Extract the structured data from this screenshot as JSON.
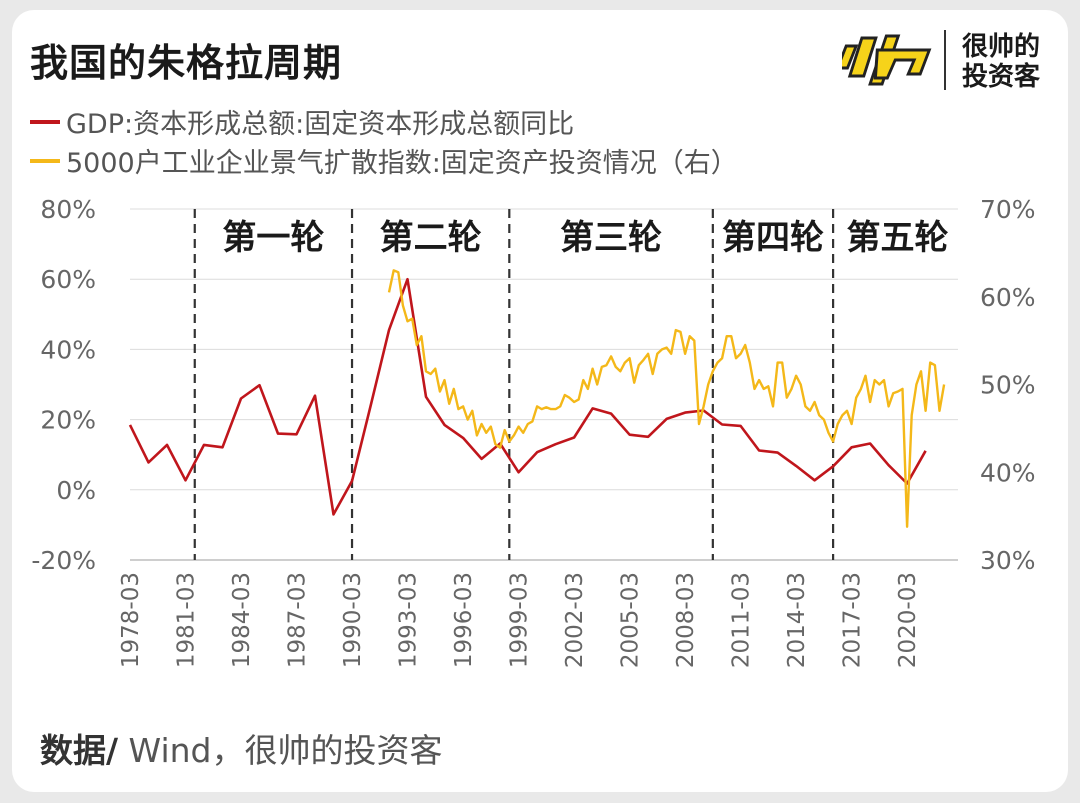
{
  "header": {
    "title": "我国的朱格拉周期"
  },
  "brand": {
    "line1": "很帅的",
    "line2": "投资客",
    "logo_color": "#f6d31a"
  },
  "source": {
    "prefix": "数据/",
    "text": " Wind，很帅的投资客"
  },
  "chart_data": {
    "type": "line",
    "title": "我国的朱格拉周期",
    "x_axis": {
      "ticks": [
        "1978-03",
        "1981-03",
        "1984-03",
        "1987-03",
        "1990-03",
        "1993-03",
        "1996-03",
        "1999-03",
        "2002-03",
        "2005-03",
        "2008-03",
        "2011-03",
        "2014-03",
        "2017-03",
        "2020-03"
      ],
      "range": [
        "1978-03",
        "2022-12"
      ]
    },
    "y_left": {
      "ticks": [
        "80%",
        "60%",
        "40%",
        "20%",
        "0%",
        "-20%"
      ],
      "range": [
        -20,
        80
      ],
      "unit": "%"
    },
    "y_right": {
      "ticks": [
        "70%",
        "60%",
        "50%",
        "40%",
        "30%"
      ],
      "range": [
        30,
        70
      ],
      "unit": "%"
    },
    "cycles": {
      "labels": [
        "第一轮",
        "第二轮",
        "第三轮",
        "第四轮",
        "第五轮"
      ],
      "boundaries": [
        "1981-09",
        "1990-03",
        "1998-09",
        "2009-09",
        "2016-03"
      ]
    },
    "series": [
      {
        "name": "GDP:资本形成总额:固定资本形成总额同比",
        "axis": "left",
        "color": "#c0161c",
        "points": [
          [
            "1978-03",
            18.5
          ],
          [
            "1979-03",
            7.8
          ],
          [
            "1980-03",
            12.8
          ],
          [
            "1981-03",
            2.7
          ],
          [
            "1982-03",
            12.8
          ],
          [
            "1983-03",
            12.1
          ],
          [
            "1984-03",
            26.0
          ],
          [
            "1985-03",
            29.8
          ],
          [
            "1986-03",
            16.0
          ],
          [
            "1987-03",
            15.8
          ],
          [
            "1988-03",
            26.8
          ],
          [
            "1989-03",
            -7.0
          ],
          [
            "1990-03",
            2.5
          ],
          [
            "1991-03",
            23.8
          ],
          [
            "1992-03",
            45.5
          ],
          [
            "1993-03",
            60.0
          ],
          [
            "1994-03",
            26.5
          ],
          [
            "1995-03",
            18.5
          ],
          [
            "1996-03",
            14.8
          ],
          [
            "1997-03",
            8.8
          ],
          [
            "1998-03",
            13.2
          ],
          [
            "1999-03",
            5.0
          ],
          [
            "2000-03",
            10.7
          ],
          [
            "2001-03",
            13.0
          ],
          [
            "2002-03",
            14.9
          ],
          [
            "2003-03",
            23.2
          ],
          [
            "2004-03",
            21.7
          ],
          [
            "2005-03",
            15.7
          ],
          [
            "2006-03",
            15.1
          ],
          [
            "2007-03",
            20.2
          ],
          [
            "2008-03",
            22.0
          ],
          [
            "2009-03",
            22.6
          ],
          [
            "2010-03",
            18.6
          ],
          [
            "2011-03",
            18.2
          ],
          [
            "2012-03",
            11.2
          ],
          [
            "2013-03",
            10.6
          ],
          [
            "2014-03",
            6.8
          ],
          [
            "2015-03",
            2.7
          ],
          [
            "2016-03",
            6.7
          ],
          [
            "2017-03",
            12.1
          ],
          [
            "2018-03",
            13.2
          ],
          [
            "2019-03",
            7.0
          ],
          [
            "2020-03",
            1.8
          ],
          [
            "2021-03",
            11.1
          ]
        ]
      },
      {
        "name": "5000户工业企业景气扩散指数:固定资产投资情况（右）",
        "axis": "right",
        "color": "#f4b819",
        "points": [
          [
            "1992-03",
            60.5
          ],
          [
            "1992-06",
            63.0
          ],
          [
            "1992-09",
            62.8
          ],
          [
            "1992-12",
            59.0
          ],
          [
            "1993-03",
            57.2
          ],
          [
            "1993-06",
            57.5
          ],
          [
            "1993-09",
            54.5
          ],
          [
            "1993-12",
            55.5
          ],
          [
            "1994-03",
            51.5
          ],
          [
            "1994-06",
            51.2
          ],
          [
            "1994-09",
            51.8
          ],
          [
            "1994-12",
            49.2
          ],
          [
            "1995-03",
            50.5
          ],
          [
            "1995-06",
            47.8
          ],
          [
            "1995-09",
            49.5
          ],
          [
            "1995-12",
            47.2
          ],
          [
            "1996-03",
            47.5
          ],
          [
            "1996-06",
            46.0
          ],
          [
            "1996-09",
            47.0
          ],
          [
            "1996-12",
            44.2
          ],
          [
            "1997-03",
            45.5
          ],
          [
            "1997-06",
            44.5
          ],
          [
            "1997-09",
            45.2
          ],
          [
            "1997-12",
            43.2
          ],
          [
            "1998-03",
            42.8
          ],
          [
            "1998-06",
            44.8
          ],
          [
            "1998-09",
            43.5
          ],
          [
            "1998-12",
            44.2
          ],
          [
            "1999-03",
            45.2
          ],
          [
            "1999-06",
            44.5
          ],
          [
            "1999-09",
            45.5
          ],
          [
            "1999-12",
            45.8
          ],
          [
            "2000-03",
            47.5
          ],
          [
            "2000-06",
            47.2
          ],
          [
            "2000-09",
            47.4
          ],
          [
            "2000-12",
            47.2
          ],
          [
            "2001-03",
            47.2
          ],
          [
            "2001-06",
            47.5
          ],
          [
            "2001-09",
            48.8
          ],
          [
            "2001-12",
            48.5
          ],
          [
            "2002-03",
            48.0
          ],
          [
            "2002-06",
            48.3
          ],
          [
            "2002-09",
            50.5
          ],
          [
            "2002-12",
            49.5
          ],
          [
            "2003-03",
            51.8
          ],
          [
            "2003-06",
            50.0
          ],
          [
            "2003-09",
            52.0
          ],
          [
            "2003-12",
            52.2
          ],
          [
            "2004-03",
            53.2
          ],
          [
            "2004-06",
            52.0
          ],
          [
            "2004-09",
            51.5
          ],
          [
            "2004-12",
            52.5
          ],
          [
            "2005-03",
            53.0
          ],
          [
            "2005-06",
            50.2
          ],
          [
            "2005-09",
            52.2
          ],
          [
            "2005-12",
            52.8
          ],
          [
            "2006-03",
            53.5
          ],
          [
            "2006-06",
            51.2
          ],
          [
            "2006-09",
            53.5
          ],
          [
            "2006-12",
            54.0
          ],
          [
            "2007-03",
            54.2
          ],
          [
            "2007-06",
            53.5
          ],
          [
            "2007-09",
            56.2
          ],
          [
            "2007-12",
            56.0
          ],
          [
            "2008-03",
            53.5
          ],
          [
            "2008-06",
            55.5
          ],
          [
            "2008-09",
            55.0
          ],
          [
            "2008-12",
            45.5
          ],
          [
            "2009-03",
            47.5
          ],
          [
            "2009-06",
            50.0
          ],
          [
            "2009-09",
            51.5
          ],
          [
            "2009-12",
            52.5
          ],
          [
            "2010-03",
            53.0
          ],
          [
            "2010-06",
            55.5
          ],
          [
            "2010-09",
            55.5
          ],
          [
            "2010-12",
            53.0
          ],
          [
            "2011-03",
            53.5
          ],
          [
            "2011-06",
            54.5
          ],
          [
            "2011-09",
            52.5
          ],
          [
            "2011-12",
            49.5
          ],
          [
            "2012-03",
            50.5
          ],
          [
            "2012-06",
            49.5
          ],
          [
            "2012-09",
            49.8
          ],
          [
            "2012-12",
            47.5
          ],
          [
            "2013-03",
            52.5
          ],
          [
            "2013-06",
            52.5
          ],
          [
            "2013-09",
            48.5
          ],
          [
            "2013-12",
            49.5
          ],
          [
            "2014-03",
            51.0
          ],
          [
            "2014-06",
            50.0
          ],
          [
            "2014-09",
            47.5
          ],
          [
            "2014-12",
            47.0
          ],
          [
            "2015-03",
            48.0
          ],
          [
            "2015-06",
            46.5
          ],
          [
            "2015-09",
            46.0
          ],
          [
            "2015-12",
            44.5
          ],
          [
            "2016-03",
            43.5
          ],
          [
            "2016-06",
            45.5
          ],
          [
            "2016-09",
            46.5
          ],
          [
            "2016-12",
            47.0
          ],
          [
            "2017-03",
            45.5
          ],
          [
            "2017-06",
            48.5
          ],
          [
            "2017-09",
            49.5
          ],
          [
            "2017-12",
            51.0
          ],
          [
            "2018-03",
            48.0
          ],
          [
            "2018-06",
            50.5
          ],
          [
            "2018-09",
            50.0
          ],
          [
            "2018-12",
            50.5
          ],
          [
            "2019-03",
            47.5
          ],
          [
            "2019-06",
            49.0
          ],
          [
            "2019-09",
            49.2
          ],
          [
            "2019-12",
            49.5
          ],
          [
            "2020-03",
            33.8
          ],
          [
            "2020-06",
            46.5
          ],
          [
            "2020-09",
            50.0
          ],
          [
            "2020-12",
            51.5
          ],
          [
            "2021-03",
            47.0
          ],
          [
            "2021-06",
            52.5
          ],
          [
            "2021-09",
            52.2
          ],
          [
            "2021-12",
            47.0
          ],
          [
            "2022-03",
            50.0
          ]
        ]
      }
    ]
  }
}
